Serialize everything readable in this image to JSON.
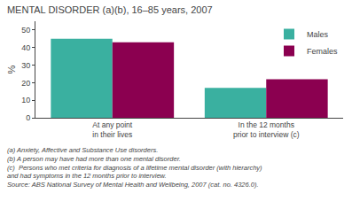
{
  "chart_data": {
    "type": "bar",
    "title": "MENTAL DISORDER (a)(b), 16–85 years, 2007",
    "ylabel": "%",
    "categories": [
      "At any point\nin their lives",
      "In the 12 months\nprior to interview (c)"
    ],
    "series": [
      {
        "name": "Males",
        "color": "#3ab0a0",
        "values": [
          45.0,
          17.0
        ]
      },
      {
        "name": "Females",
        "color": "#8b0050",
        "values": [
          43.0,
          22.0
        ]
      }
    ],
    "ylim": [
      0,
      55
    ],
    "yticks": [
      0,
      10,
      20,
      30,
      40,
      50
    ],
    "grid": false,
    "legend": "upper right",
    "annotations": [
      "(a) Anxiety, Affective and Substance Use disorders.",
      "(b) A person may have had more than one mental disorder.",
      "(c)  Persons who met criteria for diagnosis of a lifetime mental disorder (with hierarchy)",
      "and had symptoms in the 12 months prior to interview.",
      "Source: ABS National Survey of Mental Health and Wellbeing, 2007 (cat. no. 4326.0)."
    ]
  }
}
